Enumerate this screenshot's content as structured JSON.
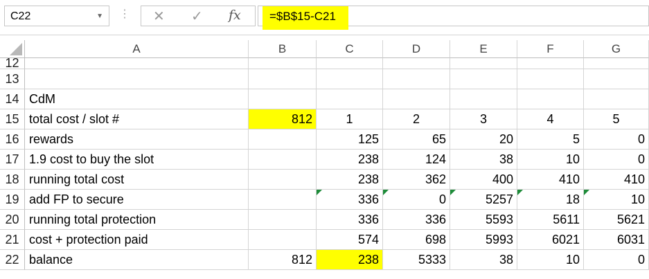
{
  "formula_bar": {
    "name_box": "C22",
    "cancel_icon": "✕",
    "enter_icon": "✓",
    "fx_label": "fx",
    "formula": "=$B$15-C21"
  },
  "columns": [
    "A",
    "B",
    "C",
    "D",
    "E",
    "F",
    "G"
  ],
  "rows": [
    {
      "num": "12",
      "cells": [
        "",
        "",
        "",
        "",
        "",
        "",
        ""
      ]
    },
    {
      "num": "13",
      "cells": [
        "",
        "",
        "",
        "",
        "",
        "",
        ""
      ]
    },
    {
      "num": "14",
      "cells": [
        "CdM",
        "",
        "",
        "",
        "",
        "",
        ""
      ]
    },
    {
      "num": "15",
      "cells": [
        "total cost / slot #",
        "812",
        "1",
        "2",
        "3",
        "4",
        "5"
      ]
    },
    {
      "num": "16",
      "cells": [
        "rewards",
        "",
        "125",
        "65",
        "20",
        "5",
        "0"
      ]
    },
    {
      "num": "17",
      "cells": [
        "1.9 cost to buy the slot",
        "",
        "238",
        "124",
        "38",
        "10",
        "0"
      ]
    },
    {
      "num": "18",
      "cells": [
        "running total cost",
        "",
        "238",
        "362",
        "400",
        "410",
        "410"
      ]
    },
    {
      "num": "19",
      "cells": [
        "add FP to secure",
        "",
        "336",
        "0",
        "5257",
        "18",
        "10"
      ]
    },
    {
      "num": "20",
      "cells": [
        "running total protection",
        "",
        "336",
        "336",
        "5593",
        "5611",
        "5621"
      ]
    },
    {
      "num": "21",
      "cells": [
        "cost + protection paid",
        "",
        "574",
        "698",
        "5993",
        "6021",
        "6031"
      ]
    },
    {
      "num": "22",
      "cells": [
        "balance",
        "812",
        "238",
        "5333",
        "38",
        "10",
        "0"
      ]
    }
  ],
  "colors": {
    "highlight": "#ffff00",
    "error_flag": "#1e8c3a",
    "gridline": "#d4d4d4"
  }
}
